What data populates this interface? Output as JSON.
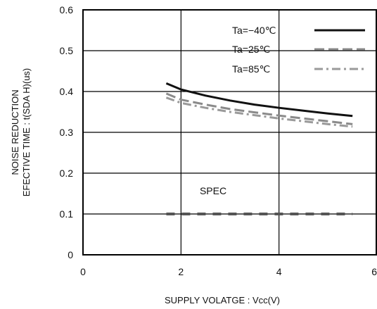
{
  "chart_data": {
    "type": "line",
    "title": "",
    "xlabel": "SUPPLY VOLATGE : Vcc(V)",
    "ylabel_lines": [
      "NOISE REDUCTION",
      "EFECTIVE TIME : t(SDA H)(us)"
    ],
    "xlim": [
      0,
      6
    ],
    "ylim": [
      0,
      0.6
    ],
    "x_ticks": [
      0,
      2,
      4,
      6
    ],
    "x_tick_labels": [
      "0",
      "2",
      "4",
      "6"
    ],
    "y_ticks": [
      0,
      0.1,
      0.2,
      0.3,
      0.4,
      0.5,
      0.6
    ],
    "y_tick_labels": [
      "0",
      "0.1",
      "0.2",
      "0.3",
      "0.4",
      "0.5",
      "0.6"
    ],
    "grid": true,
    "legend_position": "top-right",
    "series": [
      {
        "name": "Ta=−40℃",
        "style": "solid",
        "color": "#111111",
        "x": [
          1.7,
          2.0,
          2.5,
          3.0,
          3.5,
          4.0,
          4.5,
          5.0,
          5.5
        ],
        "y": [
          0.42,
          0.405,
          0.39,
          0.378,
          0.368,
          0.36,
          0.353,
          0.346,
          0.34
        ]
      },
      {
        "name": "Ta=25℃",
        "style": "dashed",
        "color": "#8a8a8a",
        "x": [
          1.7,
          2.0,
          2.5,
          3.0,
          3.5,
          4.0,
          4.5,
          5.0,
          5.5
        ],
        "y": [
          0.395,
          0.38,
          0.368,
          0.357,
          0.349,
          0.341,
          0.334,
          0.327,
          0.32
        ]
      },
      {
        "name": "Ta=85℃",
        "style": "dash-dot",
        "color": "#9a9a9a",
        "x": [
          1.7,
          2.0,
          2.5,
          3.0,
          3.5,
          4.0,
          4.5,
          5.0,
          5.5
        ],
        "y": [
          0.385,
          0.372,
          0.36,
          0.35,
          0.342,
          0.334,
          0.327,
          0.32,
          0.314
        ]
      }
    ],
    "spec": {
      "label": "SPEC",
      "value": 0.1,
      "x_range": [
        1.7,
        5.5
      ],
      "color": "#555555"
    }
  }
}
